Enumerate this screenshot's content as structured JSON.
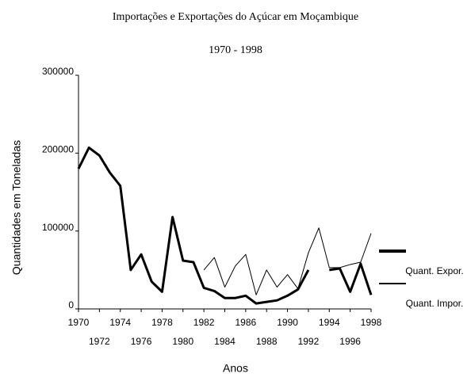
{
  "chart_data": {
    "type": "line",
    "title": "Importações e Exportações do Açúcar em Moçambique",
    "subtitle": "1970 - 1998",
    "x_label": "Anos",
    "y_label": "Quantidades em Toneladas",
    "x": [
      1970,
      1971,
      1972,
      1973,
      1974,
      1975,
      1976,
      1977,
      1978,
      1979,
      1980,
      1981,
      1982,
      1983,
      1984,
      1985,
      1986,
      1987,
      1988,
      1989,
      1990,
      1991,
      1992,
      1993,
      1994,
      1995,
      1996,
      1997,
      1998
    ],
    "series": [
      {
        "name": "Quant. Expor.",
        "color": "#000000",
        "width": 3,
        "values": [
          180000,
          207000,
          197000,
          175000,
          158000,
          50000,
          70000,
          35000,
          22000,
          118000,
          62000,
          60000,
          27000,
          23000,
          14000,
          14000,
          17000,
          7000,
          9000,
          11000,
          17000,
          25000,
          50000,
          null,
          50000,
          52000,
          22000,
          58000,
          18000
        ]
      },
      {
        "name": "Quant. Impor.",
        "color": "#000000",
        "width": 1,
        "values": [
          null,
          null,
          null,
          null,
          null,
          null,
          null,
          null,
          null,
          null,
          null,
          null,
          50000,
          66000,
          28000,
          55000,
          70000,
          18000,
          50000,
          28000,
          44000,
          26000,
          72000,
          104000,
          53000,
          53000,
          57000,
          60000,
          97000
        ]
      }
    ],
    "xlim": [
      1970,
      1998
    ],
    "xticks": [
      1970,
      1972,
      1974,
      1976,
      1978,
      1980,
      1982,
      1984,
      1986,
      1988,
      1990,
      1992,
      1994,
      1996,
      1998
    ],
    "ylim": [
      0,
      300000
    ],
    "yticks": [
      0,
      100000,
      200000,
      300000
    ],
    "grid": false
  }
}
